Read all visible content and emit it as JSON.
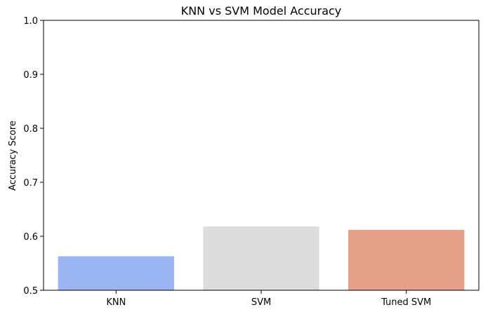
{
  "chart_data": {
    "type": "bar",
    "title": "KNN vs SVM Model Accuracy",
    "xlabel": "",
    "ylabel": "Accuracy Score",
    "categories": [
      "KNN",
      "SVM",
      "Tuned SVM"
    ],
    "values": [
      0.563,
      0.618,
      0.612
    ],
    "colors": [
      "#9bb4f2",
      "#dcdcdc",
      "#e5a089"
    ],
    "ylim": [
      0.5,
      1.0
    ],
    "yticks": [
      "0.5",
      "0.6",
      "0.7",
      "0.8",
      "0.9",
      "1.0"
    ],
    "grid": false,
    "legend": "none"
  }
}
